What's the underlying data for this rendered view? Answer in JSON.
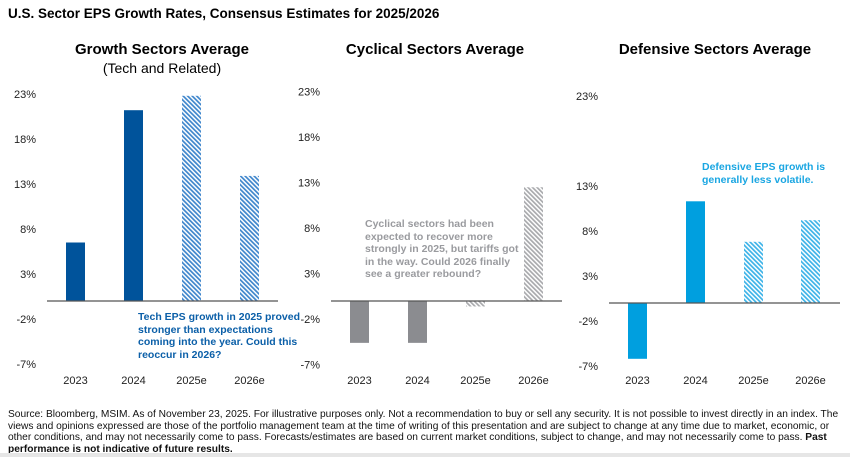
{
  "title": "U.S. Sector EPS Growth Rates, Consensus Estimates for 2025/2026",
  "chart_data": [
    {
      "type": "bar",
      "title": "Growth Sectors Average",
      "subtitle": "(Tech and Related)",
      "categories": [
        "2023",
        "2024",
        "2025e",
        "2026e"
      ],
      "values": [
        6.5,
        21.2,
        22.8,
        13.9
      ],
      "estimate": [
        false,
        false,
        true,
        true
      ],
      "yticks": [
        "23%",
        "18%",
        "13%",
        "8%",
        "3%",
        "-2%",
        "-7%"
      ],
      "ytick_values": [
        23,
        18,
        13,
        8,
        3,
        -2,
        -7
      ],
      "ylim": [
        -7,
        23
      ],
      "xlabel": "",
      "ylabel": "",
      "color": "#00539b",
      "hatch_color": "#3f86cc",
      "annotation": "Tech EPS growth in 2025 proved stronger than expectations coming into the year. Could this reoccur in 2026?",
      "annotation_color": "#0b5fa8"
    },
    {
      "type": "bar",
      "title": "Cyclical Sectors Average",
      "subtitle": "",
      "categories": [
        "2023",
        "2024",
        "2025e",
        "2026e"
      ],
      "values": [
        -4.6,
        -4.6,
        -0.6,
        12.5
      ],
      "estimate": [
        false,
        false,
        true,
        true
      ],
      "yticks": [
        "23%",
        "18%",
        "13%",
        "8%",
        "3%",
        "-2%",
        "-7%"
      ],
      "ytick_values": [
        23,
        18,
        13,
        8,
        3,
        -2,
        -7
      ],
      "ylim": [
        -7,
        23
      ],
      "xlabel": "",
      "ylabel": "",
      "color": "#8b8c90",
      "hatch_color": "#a9aaad",
      "annotation": "Cyclical sectors had been expected to recover more strongly in 2025, but tariffs got in the way. Could 2026 finally see a greater rebound?",
      "annotation_color": "#9a9b9f"
    },
    {
      "type": "bar",
      "title": "Defensive Sectors Average",
      "subtitle": "",
      "categories": [
        "2023",
        "2024",
        "2025e",
        "2026e"
      ],
      "values": [
        -6.2,
        11.3,
        6.8,
        9.2
      ],
      "estimate": [
        false,
        false,
        true,
        true
      ],
      "yticks": [
        "23%",
        "13%",
        "8%",
        "3%",
        "-2%",
        "-7%"
      ],
      "ytick_values": [
        23,
        13,
        8,
        3,
        -2,
        -7
      ],
      "ylim": [
        -7,
        23
      ],
      "xlabel": "",
      "ylabel": "",
      "color": "#009fdf",
      "hatch_color": "#3db3e8",
      "annotation": "Defensive EPS growth is generally less volatile.",
      "annotation_color": "#1aa6e2"
    }
  ],
  "footer": {
    "text": "Source: Bloomberg, MSIM. As of November 23, 2025. For illustrative purposes only. Not a recommendation to buy or sell any security. It is not possible to invest directly in an index. The views and opinions expressed are those of the portfolio management team at the time of writing of this presentation and are subject to change at any time due to market, economic, or other conditions, and may not necessarily come to pass.  Forecasts/estimates are based on current market conditions, subject to change, and may not necessarily come to pass. ",
    "bold": "Past performance is not indicative of future results."
  }
}
